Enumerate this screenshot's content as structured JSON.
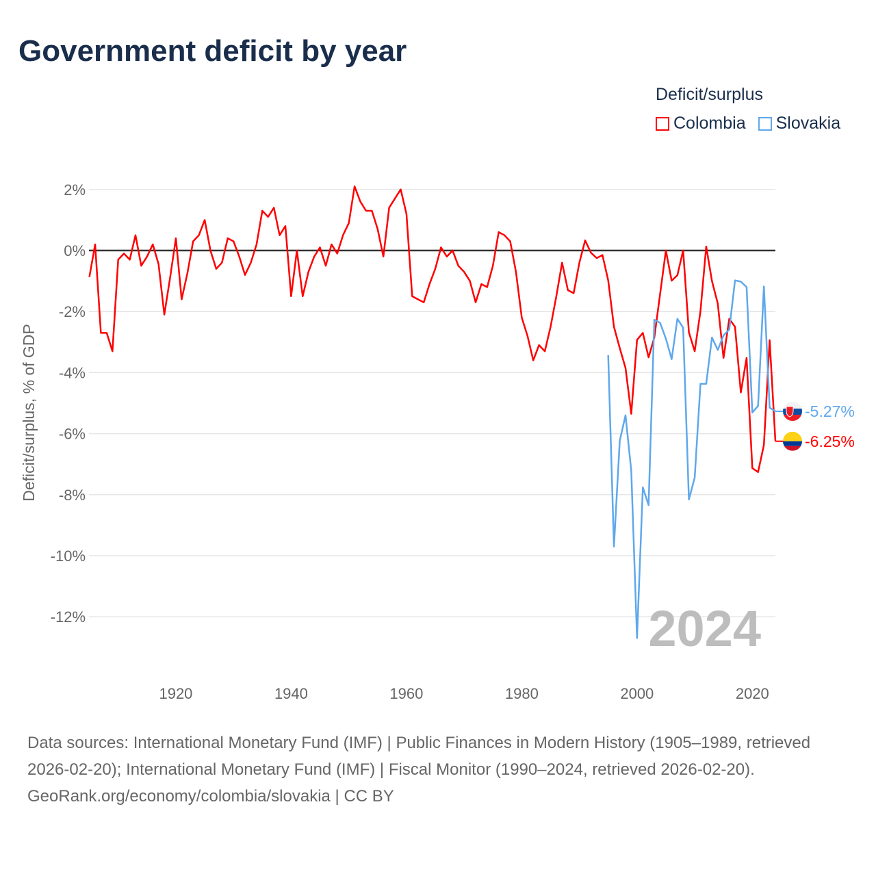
{
  "header": {
    "title": "Government deficit by year"
  },
  "legend": {
    "title": "Deficit/surplus",
    "items": [
      {
        "label": "Colombia",
        "color": "#ff0000"
      },
      {
        "label": "Slovakia",
        "color": "#5ea8ec"
      }
    ]
  },
  "chart_data": {
    "type": "line",
    "title": "Government deficit by year",
    "xlabel": "",
    "ylabel": "Deficit/surplus, % of GDP",
    "xlim": [
      1905,
      2024
    ],
    "ylim": [
      -13.5,
      2.5
    ],
    "grid": true,
    "legend_position": "top-right",
    "x_ticks": [
      1920,
      1940,
      1960,
      1980,
      2000,
      2020
    ],
    "y_ticks": [
      2,
      0,
      -2,
      -4,
      -6,
      -8,
      -10,
      -12
    ],
    "y_tick_labels": [
      "2%",
      "0%",
      "-2%",
      "-4%",
      "-6%",
      "-8%",
      "-10%",
      "-12%"
    ],
    "current_year_label": "2024",
    "series": [
      {
        "name": "Colombia",
        "color": "#ff0000",
        "start_year": 1905,
        "end_label": "-6.25%",
        "values": [
          -0.87,
          0.2,
          -2.7,
          -2.7,
          -3.3,
          -0.3,
          -0.1,
          -0.3,
          0.5,
          -0.5,
          -0.2,
          0.2,
          -0.45,
          -2.1,
          -0.9,
          0.4,
          -1.6,
          -0.75,
          0.3,
          0.5,
          1.0,
          0,
          -0.6,
          -0.4,
          0.4,
          0.3,
          -0.2,
          -0.8,
          -0.4,
          0.2,
          1.3,
          1.1,
          1.4,
          0.5,
          0.8,
          -1.5,
          0,
          -1.5,
          -0.7,
          -0.2,
          0.1,
          -0.5,
          0.2,
          -0.1,
          0.5,
          0.9,
          2.1,
          1.6,
          1.3,
          1.3,
          0.7,
          -0.2,
          1.4,
          1.7,
          2.0,
          1.2,
          -1.5,
          -1.6,
          -1.7,
          -1.1,
          -0.6,
          0.1,
          -0.2,
          0,
          -0.5,
          -0.7,
          -1.0,
          -1.7,
          -1.1,
          -1.2,
          -0.5,
          0.6,
          0.5,
          0.3,
          -0.7,
          -2.2,
          -2.8,
          -3.6,
          -3.1,
          -3.3,
          -2.5,
          -1.5,
          -0.4,
          -1.3,
          -1.4,
          -0.4,
          0.33,
          -0.07,
          -0.25,
          -0.15,
          -0.98,
          -2.5,
          -3.2,
          -3.85,
          -5.35,
          -2.93,
          -2.7,
          -3.5,
          -2.85,
          -1.43,
          0,
          -0.99,
          -0.81,
          0,
          -2.68,
          -3.3,
          -1.99,
          0.13,
          -1.0,
          -1.74,
          -3.52,
          -2.24,
          -2.5,
          -4.65,
          -3.52,
          -7.13,
          -7.26,
          -6.37,
          -2.94,
          -6.25
        ]
      },
      {
        "name": "Slovakia",
        "color": "#5ea8ec",
        "start_year": 1995,
        "end_label": "-5.27%",
        "values": [
          -3.43,
          -9.7,
          -6.23,
          -5.4,
          -7.22,
          -12.7,
          -7.76,
          -8.34,
          -2.27,
          -2.37,
          -2.89,
          -3.56,
          -2.24,
          -2.53,
          -8.16,
          -7.44,
          -4.37,
          -4.37,
          -2.85,
          -3.26,
          -2.78,
          -2.59,
          -0.98,
          -1.02,
          -1.2,
          -5.31,
          -5.09,
          -1.18,
          -5.15,
          -5.27
        ]
      }
    ]
  },
  "footer": {
    "sources": "Data sources: International Monetary Fund (IMF) | Public Finances in Modern History (1905–1989, retrieved 2026-02-20); International Monetary Fund (IMF) | Fiscal Monitor (1990–2024, retrieved 2026-02-20).",
    "credit": "GeoRank.org/economy/colombia/slovakia | CC BY"
  }
}
